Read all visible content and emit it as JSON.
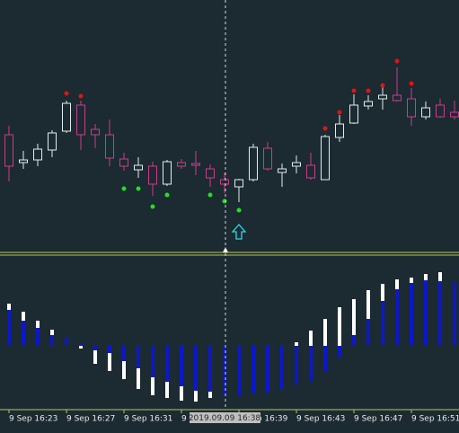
{
  "chart_data": [
    {
      "type": "candlestick",
      "open": [
        150,
        119,
        122,
        133,
        154,
        183,
        156,
        150,
        123,
        111,
        115,
        95,
        119,
        118,
        112,
        100,
        92,
        100,
        135,
        108,
        115,
        116,
        100,
        147,
        163,
        182,
        190,
        194,
        190,
        170,
        183,
        175
      ],
      "high": [
        160,
        132,
        140,
        155,
        188,
        188,
        162,
        167,
        130,
        125,
        120,
        122,
        123,
        132,
        117,
        108,
        101,
        140,
        142,
        118,
        127,
        130,
        150,
        172,
        195,
        194,
        203,
        225,
        202,
        187,
        190,
        188
      ],
      "low": [
        98,
        112,
        115,
        125,
        152,
        133,
        135,
        115,
        110,
        102,
        82,
        93,
        112,
        105,
        92,
        85,
        75,
        98,
        110,
        92,
        107,
        100,
        100,
        142,
        162,
        178,
        178,
        187,
        160,
        167,
        169,
        167
      ],
      "close": [
        115,
        122,
        134,
        152,
        185,
        150,
        150,
        124,
        115,
        116,
        95,
        120,
        115,
        116,
        102,
        95,
        100,
        136,
        112,
        112,
        119,
        102,
        148,
        162,
        183,
        187,
        194,
        188,
        170,
        180,
        170,
        170
      ],
      "up_color": "#dfeeee",
      "down_color": "#cc3c8c",
      "series": [
        {
          "color": "#e01414",
          "values": [
            null,
            null,
            null,
            null,
            196,
            193,
            null,
            null,
            null,
            null,
            null,
            null,
            null,
            null,
            null,
            null,
            null,
            null,
            null,
            null,
            null,
            null,
            157,
            175,
            199,
            199,
            205,
            232,
            207,
            null,
            null,
            null
          ]
        },
        {
          "color": "#1fe01f",
          "values": [
            null,
            null,
            null,
            null,
            null,
            null,
            null,
            null,
            90,
            90,
            70,
            83,
            null,
            null,
            83,
            76,
            66,
            null,
            null,
            null,
            null,
            null,
            null,
            null,
            null,
            null,
            null,
            null,
            null,
            null,
            null,
            null
          ]
        }
      ]
    },
    {
      "type": "bar",
      "categories": [
        "9 Sep 16:23",
        null,
        null,
        null,
        "9 Sep 16:27",
        null,
        null,
        null,
        "9 Sep 16:31",
        null,
        null,
        null,
        "9 Sep 16:35",
        null,
        null,
        null,
        "9 Sep 16:39",
        null,
        null,
        null,
        "9 Sep 16:43",
        null,
        null,
        null,
        "9 Sep 16:47",
        null,
        null,
        null,
        "9 Sep 16:51",
        null,
        null,
        null
      ],
      "crosshair_label": "2019.09.09 16:38",
      "series": [
        {
          "color": "#ffffff",
          "values": [
            47,
            38,
            28,
            18,
            9,
            -3,
            -20,
            -28,
            -37,
            -48,
            -55,
            -58,
            -61,
            -62,
            -58,
            -50,
            -40,
            -35,
            -25,
            -15,
            4,
            17,
            30,
            43,
            52,
            62,
            69,
            74,
            76,
            80,
            82,
            71
          ]
        },
        {
          "color": "#0c18c8",
          "values": [
            40,
            28,
            20,
            12,
            9,
            3,
            -5,
            -8,
            -17,
            -25,
            -35,
            -40,
            -45,
            -50,
            -51,
            -56,
            -55,
            -53,
            -52,
            -48,
            -43,
            -40,
            -28,
            -12,
            12,
            30,
            50,
            63,
            70,
            73,
            72,
            71
          ]
        }
      ]
    }
  ]
}
